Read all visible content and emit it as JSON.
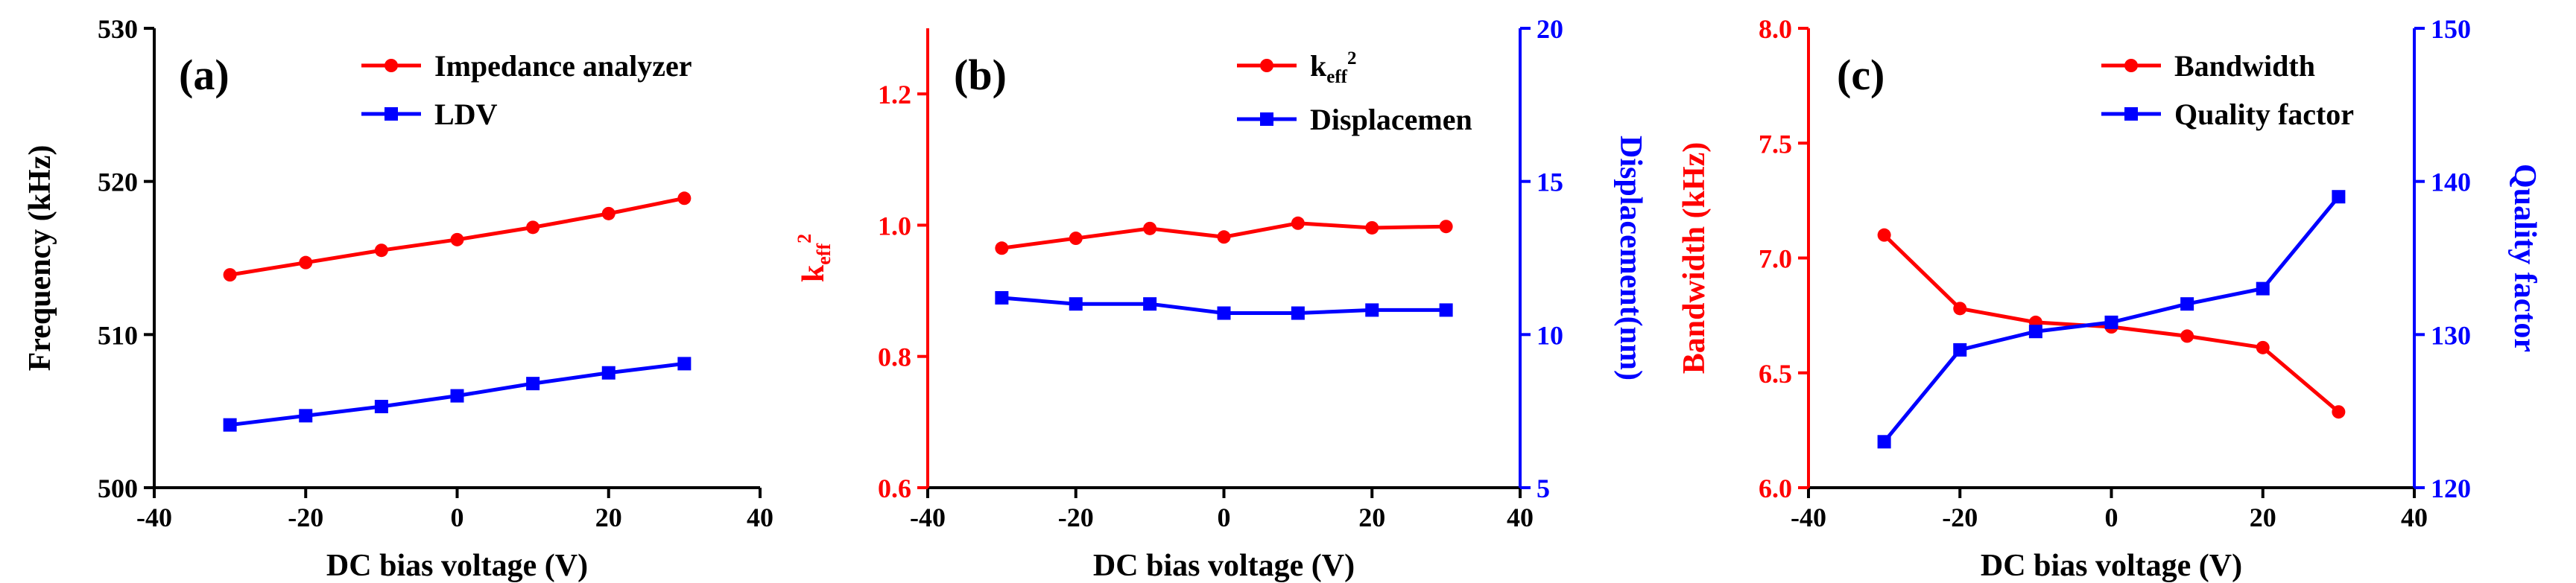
{
  "chart_data": [
    {
      "type": "line",
      "panel_label": "(a)",
      "title": "",
      "xlabel": "DC bias voltage (V)",
      "ylabel": "Frequency (kHz)",
      "xlim": [
        -40,
        40
      ],
      "ylim": [
        500,
        530
      ],
      "x": [
        -30,
        -20,
        -10,
        0,
        10,
        20,
        30
      ],
      "xticks": [
        -40,
        -20,
        0,
        20,
        40
      ],
      "yticks": [
        500,
        510,
        520,
        530
      ],
      "legend_position": "top-right",
      "series": [
        {
          "name": "Impedance analyzer",
          "color": "#ff0000",
          "marker": "circle",
          "axis": "left",
          "values": [
            513.9,
            514.7,
            515.5,
            516.2,
            517.0,
            517.9,
            518.9
          ]
        },
        {
          "name": "LDV",
          "color": "#0000ff",
          "marker": "square",
          "axis": "left",
          "values": [
            504.1,
            504.7,
            505.3,
            506.0,
            506.8,
            507.5,
            508.1
          ]
        }
      ]
    },
    {
      "type": "line",
      "panel_label": "(b)",
      "title": "",
      "xlabel": "DC bias voltage (V)",
      "ylabel": "k",
      "ylabel_sub": "eff",
      "ylabel_sup": "2",
      "y2label": "Displacement(nm)",
      "xlim": [
        -40,
        40
      ],
      "ylim": [
        0.6,
        1.3
      ],
      "y2lim": [
        5,
        20
      ],
      "x": [
        -30,
        -20,
        -10,
        0,
        10,
        20,
        30
      ],
      "xticks": [
        -40,
        -20,
        0,
        20,
        40
      ],
      "yticks": [
        0.6,
        0.8,
        1.0,
        1.2
      ],
      "y2ticks": [
        5,
        10,
        15,
        20
      ],
      "legend_position": "top-right",
      "series": [
        {
          "name": "k",
          "name_sub": "eff",
          "name_sup": "2",
          "color": "#ff0000",
          "marker": "circle",
          "axis": "left",
          "values": [
            0.965,
            0.98,
            0.995,
            0.982,
            1.003,
            0.996,
            0.998
          ]
        },
        {
          "name": "Displacemen",
          "color": "#0000ff",
          "marker": "square",
          "axis": "right",
          "values": [
            11.2,
            11.0,
            11.0,
            10.7,
            10.7,
            10.8,
            10.8
          ]
        }
      ]
    },
    {
      "type": "line",
      "panel_label": "(c)",
      "title": "",
      "xlabel": "DC bias voltage (V)",
      "ylabel": "Bandwidth (kHz)",
      "y2label": "Quality factor",
      "xlim": [
        -40,
        40
      ],
      "ylim": [
        6.0,
        8.0
      ],
      "y2lim": [
        120,
        150
      ],
      "x": [
        -30,
        -20,
        -10,
        0,
        10,
        20,
        30
      ],
      "xticks": [
        -40,
        -20,
        0,
        20,
        40
      ],
      "yticks": [
        6.0,
        6.5,
        7.0,
        7.5,
        8.0
      ],
      "y2ticks": [
        120,
        130,
        140,
        150
      ],
      "legend_position": "top-right",
      "series": [
        {
          "name": "Bandwidth",
          "color": "#ff0000",
          "marker": "circle",
          "axis": "left",
          "values": [
            7.1,
            6.78,
            6.72,
            6.7,
            6.66,
            6.61,
            6.33
          ]
        },
        {
          "name": "Quality factor",
          "color": "#0000ff",
          "marker": "square",
          "axis": "right",
          "values": [
            123.0,
            129.0,
            130.2,
            130.8,
            132.0,
            133.0,
            139.0
          ]
        }
      ]
    }
  ]
}
